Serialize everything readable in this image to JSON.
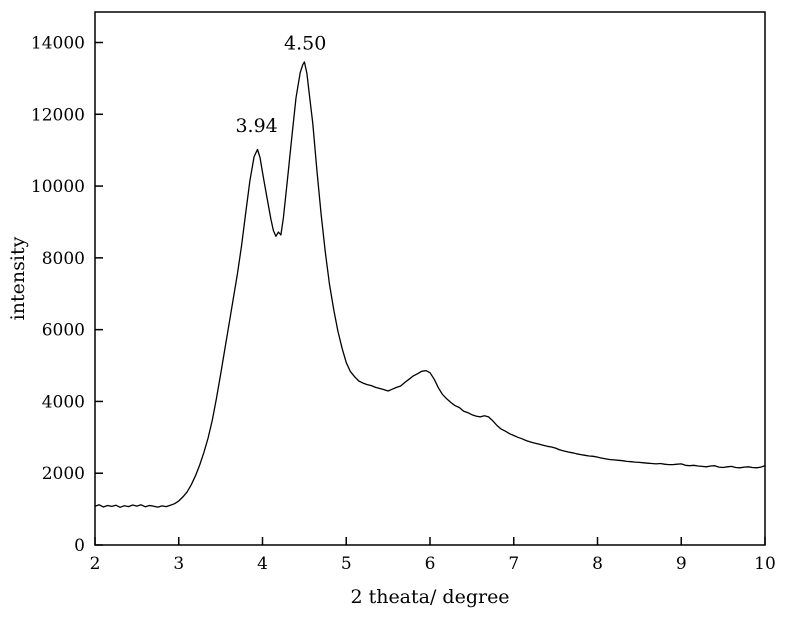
{
  "page": {
    "background": "#ffffff",
    "line_color": "#000000",
    "frame_color": "#000000"
  },
  "chart_data": {
    "type": "line",
    "title": "",
    "xlabel": "2 theata/ degree",
    "ylabel": "intensity",
    "xlim": [
      2,
      10
    ],
    "ylim": [
      0,
      14850
    ],
    "x_ticks": [
      2,
      3,
      4,
      5,
      6,
      7,
      8,
      9,
      10
    ],
    "y_ticks": [
      0,
      2000,
      4000,
      6000,
      8000,
      10000,
      12000,
      14000
    ],
    "grid": false,
    "legend": null,
    "annotations": [
      {
        "text": "3.94",
        "x": 3.93,
        "y": 11500
      },
      {
        "text": "4.50",
        "x": 4.51,
        "y": 13800
      }
    ],
    "series": [
      {
        "name": "XRD intensity",
        "color": "#000000",
        "points": [
          [
            2.0,
            1080
          ],
          [
            2.05,
            1120
          ],
          [
            2.1,
            1060
          ],
          [
            2.15,
            1100
          ],
          [
            2.2,
            1075
          ],
          [
            2.25,
            1110
          ],
          [
            2.3,
            1050
          ],
          [
            2.35,
            1095
          ],
          [
            2.4,
            1070
          ],
          [
            2.45,
            1115
          ],
          [
            2.5,
            1085
          ],
          [
            2.55,
            1120
          ],
          [
            2.6,
            1065
          ],
          [
            2.65,
            1100
          ],
          [
            2.7,
            1080
          ],
          [
            2.75,
            1055
          ],
          [
            2.8,
            1090
          ],
          [
            2.85,
            1070
          ],
          [
            2.9,
            1110
          ],
          [
            2.95,
            1150
          ],
          [
            3.0,
            1230
          ],
          [
            3.05,
            1340
          ],
          [
            3.1,
            1480
          ],
          [
            3.15,
            1680
          ],
          [
            3.2,
            1930
          ],
          [
            3.25,
            2230
          ],
          [
            3.3,
            2580
          ],
          [
            3.35,
            2980
          ],
          [
            3.4,
            3480
          ],
          [
            3.45,
            4080
          ],
          [
            3.5,
            4750
          ],
          [
            3.55,
            5450
          ],
          [
            3.6,
            6150
          ],
          [
            3.65,
            6850
          ],
          [
            3.7,
            7550
          ],
          [
            3.75,
            8350
          ],
          [
            3.8,
            9250
          ],
          [
            3.85,
            10150
          ],
          [
            3.9,
            10820
          ],
          [
            3.94,
            11020
          ],
          [
            3.97,
            10800
          ],
          [
            4.0,
            10380
          ],
          [
            4.05,
            9720
          ],
          [
            4.1,
            9080
          ],
          [
            4.13,
            8760
          ],
          [
            4.16,
            8600
          ],
          [
            4.19,
            8720
          ],
          [
            4.22,
            8640
          ],
          [
            4.25,
            9120
          ],
          [
            4.3,
            10220
          ],
          [
            4.35,
            11360
          ],
          [
            4.4,
            12460
          ],
          [
            4.45,
            13160
          ],
          [
            4.48,
            13380
          ],
          [
            4.5,
            13460
          ],
          [
            4.53,
            13140
          ],
          [
            4.56,
            12540
          ],
          [
            4.6,
            11740
          ],
          [
            4.65,
            10440
          ],
          [
            4.7,
            9220
          ],
          [
            4.75,
            8160
          ],
          [
            4.8,
            7260
          ],
          [
            4.85,
            6560
          ],
          [
            4.9,
            5960
          ],
          [
            4.95,
            5480
          ],
          [
            5.0,
            5080
          ],
          [
            5.05,
            4830
          ],
          [
            5.1,
            4690
          ],
          [
            5.15,
            4570
          ],
          [
            5.2,
            4510
          ],
          [
            5.25,
            4470
          ],
          [
            5.3,
            4440
          ],
          [
            5.35,
            4390
          ],
          [
            5.4,
            4360
          ],
          [
            5.45,
            4330
          ],
          [
            5.5,
            4290
          ],
          [
            5.55,
            4340
          ],
          [
            5.6,
            4390
          ],
          [
            5.65,
            4430
          ],
          [
            5.7,
            4530
          ],
          [
            5.75,
            4620
          ],
          [
            5.8,
            4710
          ],
          [
            5.85,
            4770
          ],
          [
            5.9,
            4840
          ],
          [
            5.95,
            4860
          ],
          [
            6.0,
            4800
          ],
          [
            6.05,
            4620
          ],
          [
            6.1,
            4380
          ],
          [
            6.15,
            4190
          ],
          [
            6.2,
            4070
          ],
          [
            6.25,
            3970
          ],
          [
            6.3,
            3880
          ],
          [
            6.35,
            3830
          ],
          [
            6.4,
            3730
          ],
          [
            6.45,
            3690
          ],
          [
            6.5,
            3630
          ],
          [
            6.55,
            3590
          ],
          [
            6.6,
            3570
          ],
          [
            6.65,
            3600
          ],
          [
            6.7,
            3570
          ],
          [
            6.75,
            3460
          ],
          [
            6.8,
            3330
          ],
          [
            6.85,
            3230
          ],
          [
            6.9,
            3170
          ],
          [
            6.95,
            3100
          ],
          [
            7.0,
            3050
          ],
          [
            7.05,
            3000
          ],
          [
            7.1,
            2960
          ],
          [
            7.15,
            2910
          ],
          [
            7.2,
            2870
          ],
          [
            7.25,
            2840
          ],
          [
            7.3,
            2810
          ],
          [
            7.35,
            2780
          ],
          [
            7.4,
            2750
          ],
          [
            7.45,
            2730
          ],
          [
            7.5,
            2700
          ],
          [
            7.55,
            2650
          ],
          [
            7.6,
            2620
          ],
          [
            7.65,
            2590
          ],
          [
            7.7,
            2570
          ],
          [
            7.75,
            2540
          ],
          [
            7.8,
            2520
          ],
          [
            7.85,
            2500
          ],
          [
            7.9,
            2480
          ],
          [
            7.95,
            2470
          ],
          [
            8.0,
            2450
          ],
          [
            8.05,
            2420
          ],
          [
            8.1,
            2400
          ],
          [
            8.15,
            2380
          ],
          [
            8.2,
            2370
          ],
          [
            8.25,
            2360
          ],
          [
            8.3,
            2350
          ],
          [
            8.35,
            2330
          ],
          [
            8.4,
            2320
          ],
          [
            8.45,
            2310
          ],
          [
            8.5,
            2300
          ],
          [
            8.55,
            2290
          ],
          [
            8.6,
            2280
          ],
          [
            8.65,
            2270
          ],
          [
            8.7,
            2260
          ],
          [
            8.75,
            2270
          ],
          [
            8.8,
            2250
          ],
          [
            8.85,
            2240
          ],
          [
            8.9,
            2240
          ],
          [
            8.95,
            2250
          ],
          [
            9.0,
            2260
          ],
          [
            9.05,
            2220
          ],
          [
            9.1,
            2210
          ],
          [
            9.15,
            2220
          ],
          [
            9.2,
            2200
          ],
          [
            9.25,
            2190
          ],
          [
            9.3,
            2180
          ],
          [
            9.35,
            2200
          ],
          [
            9.4,
            2210
          ],
          [
            9.45,
            2170
          ],
          [
            9.5,
            2160
          ],
          [
            9.55,
            2180
          ],
          [
            9.6,
            2190
          ],
          [
            9.65,
            2160
          ],
          [
            9.7,
            2150
          ],
          [
            9.75,
            2170
          ],
          [
            9.8,
            2180
          ],
          [
            9.85,
            2160
          ],
          [
            9.9,
            2150
          ],
          [
            9.95,
            2170
          ],
          [
            10.0,
            2210
          ]
        ]
      }
    ]
  }
}
